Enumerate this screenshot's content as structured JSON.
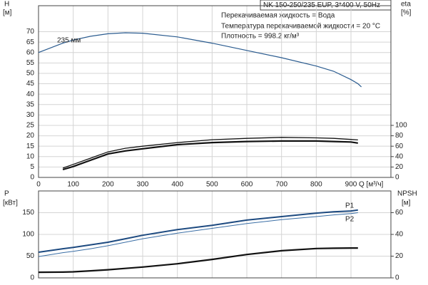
{
  "chart_data": [
    {
      "type": "line",
      "title": "NK 150-250/235 EUP, 3*400 V, 50Hz",
      "annotations": [
        "Перекачиваемая жидкость = Вода",
        "Температура перекачиваемой жидкости = 20 °C",
        "Плотность = 998.2 кг/м³"
      ],
      "y_label": "H",
      "y_unit": "[м]",
      "y2_label": "eta",
      "y2_unit": "[%]",
      "x_label": "Q [м³/ч]",
      "x": [
        0,
        70,
        100,
        150,
        200,
        250,
        300,
        400,
        500,
        600,
        700,
        800,
        850,
        900,
        920,
        930
      ],
      "xlim": [
        0,
        1015
      ],
      "xticks": [
        0,
        100,
        200,
        300,
        400,
        500,
        600,
        700,
        800,
        900
      ],
      "ylim": [
        0,
        82.5
      ],
      "yticks": [
        0,
        5,
        10,
        15,
        20,
        25,
        30,
        35,
        40,
        45,
        50,
        55,
        60,
        65,
        70
      ],
      "y2lim": [
        0,
        330
      ],
      "y2ticks": [
        0,
        20,
        40,
        60,
        80,
        100
      ],
      "grid": true,
      "series": [
        {
          "name": "235 мм",
          "color": "#2a5b8f",
          "values": [
            60,
            64.5,
            66,
            67.8,
            69,
            69.5,
            69.3,
            67.5,
            64.5,
            61,
            57.5,
            53.5,
            51,
            47,
            45,
            43.5
          ]
        },
        {
          "color": "#111111",
          "axis": "y2",
          "values": [
            null,
            18,
            25,
            37,
            49,
            56,
            60,
            67,
            72.5,
            75,
            77,
            76,
            75,
            73,
            72,
            null
          ]
        },
        {
          "color": "#111111",
          "axis": "y2",
          "values": [
            null,
            15,
            21,
            33,
            45,
            51,
            55,
            63,
            67,
            69,
            70,
            70,
            69,
            68,
            66,
            null
          ]
        }
      ]
    },
    {
      "type": "line",
      "y_label": "P",
      "y_unit": "[кВт]",
      "y2_label": "NPSH",
      "y2_unit": "[м]",
      "x": [
        0,
        70,
        100,
        150,
        200,
        250,
        300,
        400,
        500,
        600,
        700,
        800,
        850,
        900,
        920,
        930
      ],
      "xlim": [
        0,
        1015
      ],
      "ylim": [
        0,
        200
      ],
      "yticks": [
        0,
        50,
        100,
        150
      ],
      "y2lim": [
        0,
        80
      ],
      "y2ticks": [
        0,
        20,
        40,
        60
      ],
      "grid": true,
      "series": [
        {
          "name": "P1",
          "color": "#1d4a80",
          "values": [
            59,
            67,
            70,
            76,
            82,
            90,
            98,
            111,
            121,
            133,
            141,
            149,
            152,
            154,
            156,
            null
          ]
        },
        {
          "name": "P2",
          "color": "#3a6ea5",
          "values": [
            49,
            58,
            61,
            67,
            74,
            82,
            90,
            103,
            114,
            125,
            134,
            141,
            145,
            148,
            150,
            null
          ]
        },
        {
          "color": "#111111",
          "axis": "y2",
          "values": [
            5.2,
            5.3,
            5.6,
            6.5,
            7.5,
            8.7,
            10,
            13,
            17,
            21.5,
            25,
            27,
            27.3,
            27.5,
            27.5,
            null
          ]
        }
      ]
    }
  ]
}
